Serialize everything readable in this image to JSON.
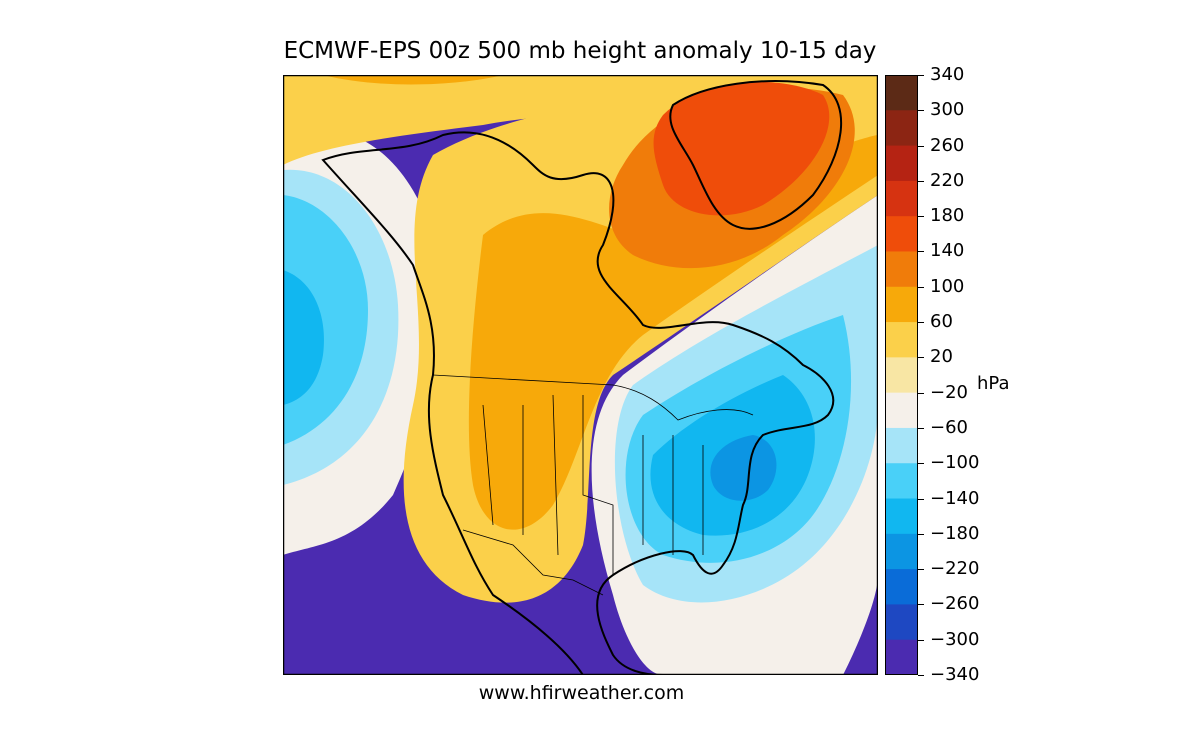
{
  "title": "ECMWF-EPS 00z 500 mb height anomaly 10-15 day",
  "credit": "www.hfirweather.com",
  "colorbar": {
    "unit": "hPa",
    "levels": [
      {
        "label": "340",
        "color": "#5c2a16"
      },
      {
        "label": "300",
        "color": "#8c2513"
      },
      {
        "label": "260",
        "color": "#b52313"
      },
      {
        "label": "220",
        "color": "#d63311"
      },
      {
        "label": "180",
        "color": "#ef4d0a"
      },
      {
        "label": "140",
        "color": "#f07c0a"
      },
      {
        "label": "100",
        "color": "#f7a90a"
      },
      {
        "label": "60",
        "color": "#fbd04a"
      },
      {
        "label": "20",
        "color": "#f8e6a4"
      },
      {
        "label": "−20",
        "color": "#f5f0ea"
      },
      {
        "label": "−60",
        "color": "#a6e4f8"
      },
      {
        "label": "−100",
        "color": "#49d0f8"
      },
      {
        "label": "−140",
        "color": "#11b7f0"
      },
      {
        "label": "−180",
        "color": "#0c95e3"
      },
      {
        "label": "−220",
        "color": "#0a6cd8"
      },
      {
        "label": "−260",
        "color": "#1e48c2"
      },
      {
        "label": "−300",
        "color": "#4b2bb0"
      },
      {
        "label": "−340",
        "color": "#7a1592"
      }
    ]
  },
  "map": {
    "region": "North America",
    "features": [
      {
        "name": "positive-anomaly-greenland-arctic",
        "level": "180"
      },
      {
        "name": "positive-anomaly-western-north-america",
        "level": "100"
      },
      {
        "name": "negative-anomaly-eastern-us",
        "level": "−180"
      },
      {
        "name": "negative-anomaly-north-pacific",
        "level": "−140"
      }
    ]
  }
}
